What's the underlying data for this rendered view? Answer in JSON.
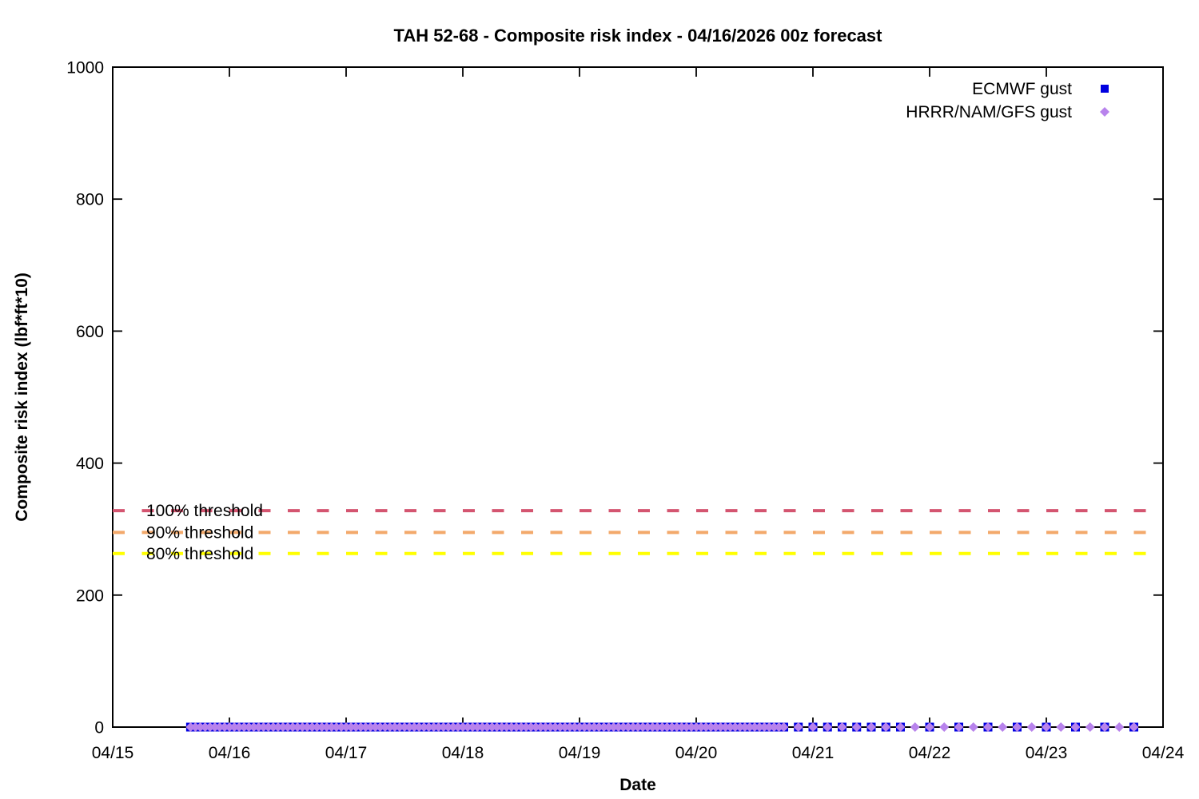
{
  "chart_data": {
    "type": "scatter",
    "title": "TAH 52-68 - Composite risk index - 04/16/2026 00z forecast",
    "xlabel": "Date",
    "ylabel": "Composite risk index (lbf*ft*10)",
    "x_tick_labels": [
      "04/15",
      "04/16",
      "04/17",
      "04/18",
      "04/19",
      "04/20",
      "04/21",
      "04/22",
      "04/23",
      "04/24"
    ],
    "x_range_days": [
      0,
      9
    ],
    "ylim": [
      0,
      1000
    ],
    "y_ticks": [
      0,
      200,
      400,
      600,
      800,
      1000
    ],
    "grid": false,
    "legend_position": "top-right-inside",
    "series": [
      {
        "name": "ECMWF gust",
        "marker": "square",
        "color": "#0000e0",
        "y_value": 0,
        "segments_days_after_04_15": [
          {
            "start": 0.667,
            "end": 5.708,
            "step_days": 0.041667
          },
          {
            "start": 5.75,
            "end": 6.75,
            "step_days": 0.125
          },
          {
            "start": 7.0,
            "end": 8.75,
            "step_days": 0.25
          }
        ]
      },
      {
        "name": "HRRR/NAM/GFS gust",
        "marker": "diamond",
        "color": "#b883ec",
        "y_value": 0,
        "segments_days_after_04_15": [
          {
            "start": 0.667,
            "end": 5.708,
            "step_days": 0.041667
          },
          {
            "start": 5.75,
            "end": 6.75,
            "step_days": 0.125
          },
          {
            "start": 6.875,
            "end": 8.75,
            "step_days": 0.125
          }
        ]
      }
    ],
    "thresholds": [
      {
        "label": "100% threshold",
        "value": 328,
        "color": "#d45570"
      },
      {
        "label": "90% threshold",
        "value": 295,
        "color": "#f3a96b"
      },
      {
        "label": "80% threshold",
        "value": 263,
        "color": "#ffff00"
      }
    ]
  }
}
